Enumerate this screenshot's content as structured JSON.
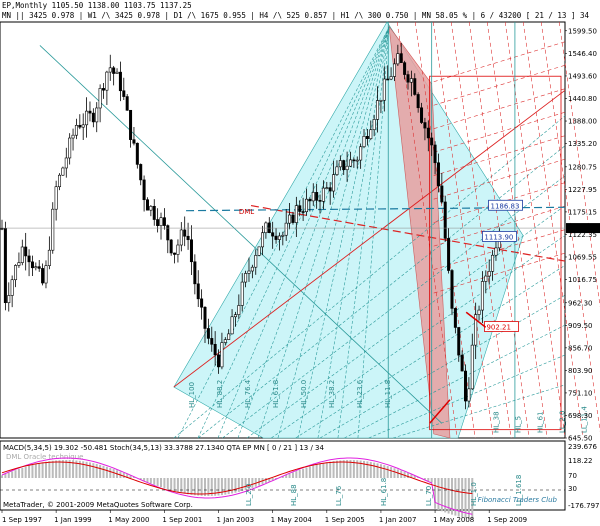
{
  "chart_data": {
    "type": "candlestick",
    "symbol_line": "EP,Monthly  1105.50 1138.00 1103.75 1137.25",
    "period_line": "MN || 3425  0.978 | W1 /\\ 3425  0.978 | D1 /\\ 1675  0.955 | H4 /\\ 525  0.857 | H1 /\\ 300  0.750 | MN  58.05 %  | 6 / 43200 [ 21 / 13 ] 34",
    "current_price_label": "1137.25",
    "y_ticks": [
      "1599.50",
      "1546.40",
      "1493.60",
      "1440.80",
      "1388.00",
      "1335.20",
      "1280.75",
      "1227.95",
      "1175.15",
      "1122.35",
      "1069.55",
      "1016.75",
      "962.30",
      "909.50",
      "856.70",
      "803.90",
      "751.10",
      "698.30",
      "645.50"
    ],
    "x_ticks": [
      "1 Sep 1997",
      "1 Jan 1999",
      "1 May 2000",
      "1 Sep 2001",
      "1 Jan 2003",
      "1 May 2004",
      "1 Sep 2005",
      "1 Jan 2007",
      "1 May 2008",
      "1 Sep 2009"
    ],
    "y_range": [
      645.5,
      1620
    ],
    "annotations": {
      "level_1": "1186.83",
      "level_2": "1113.90",
      "level_3": "902.21",
      "fan_label_dml": "DML"
    },
    "fan_labels_bottom": [
      "HL_100",
      "HL_88.2",
      "HL_76.4",
      "HL_61.8",
      "HL_50.0",
      "HL_38.2",
      "HL_23.6",
      "HL_11.8"
    ],
    "fan_labels_right": [
      "HL_38",
      "HL_5",
      "HL_61",
      "LL_2.0",
      "LL_11.4"
    ],
    "subwindow": {
      "title": "MACD(5,34,5) 19.302 -50.481  Stoch(34,5,13) 33.3788 27.1340  QTA EP MN  [ 0 / 21 ] 13 / 34",
      "subtitle": "DML Oracle technique",
      "y_ticks": [
        "239.676",
        "118.22",
        "70",
        "30",
        "-176.797"
      ],
      "bottom_labels": [
        "LL_2.0",
        "HL_88",
        "LL_76",
        "HL_61.8",
        "LL_70",
        "HL_1.0",
        "LL_1.618"
      ]
    },
    "copyright": "MetaTrader, © 2001-2009 MetaQuotes Software Corp.",
    "watermark": "Fibonacci Traders Club"
  }
}
